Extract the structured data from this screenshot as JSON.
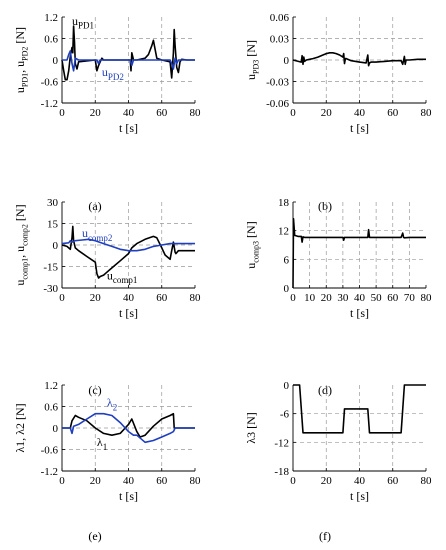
{
  "chart_data": [
    {
      "id": "a",
      "type": "line",
      "caption": "(a)",
      "xlabel": "t [s]",
      "ylabel": "u_PD1, u_PD2 [N]",
      "xlim": [
        0,
        80
      ],
      "ylim": [
        -1.2,
        1.2
      ],
      "xticks": [
        0,
        20,
        40,
        60,
        80
      ],
      "yticks": [
        1.2,
        0.6,
        0,
        -0.6,
        -1.2
      ],
      "xtick_labels": [
        "0",
        "20",
        "40",
        "60",
        "80"
      ],
      "ytick_labels": [
        "1.2",
        "0.6",
        "0",
        "-0.6",
        "-1.2"
      ],
      "grid": true,
      "series": [
        {
          "name": "u_PD1",
          "color": "#000000",
          "x": [
            0,
            1,
            2,
            3,
            4,
            5,
            6,
            6.5,
            7,
            7.5,
            8,
            9,
            10,
            20,
            21,
            22,
            23,
            24,
            25,
            30,
            41,
            41.5,
            42,
            42.5,
            43,
            45,
            50,
            52,
            54,
            55,
            56,
            57,
            60,
            65,
            66,
            67,
            67.5,
            68,
            69,
            70,
            71,
            72,
            75,
            80
          ],
          "y": [
            0,
            -0.3,
            -0.55,
            -0.55,
            -0.3,
            0.1,
            0.35,
            0.2,
            0.95,
            0.5,
            -0.1,
            -0.25,
            -0.05,
            0,
            -0.3,
            -0.15,
            -0.05,
            0.05,
            0,
            0,
            0,
            -0.3,
            0.2,
            0.1,
            0,
            0,
            0.05,
            0.15,
            0.4,
            0.55,
            0.3,
            0.05,
            0,
            -0.05,
            -0.5,
            0.2,
            0.85,
            0.4,
            -0.2,
            -0.35,
            -0.05,
            0.02,
            0,
            0
          ]
        },
        {
          "name": "u_PD2",
          "color": "#1f3fbf",
          "x": [
            0,
            3,
            4,
            5,
            6,
            7,
            8,
            10,
            21,
            22,
            23,
            30,
            41,
            42,
            43,
            60,
            65,
            66,
            67,
            68,
            69,
            70,
            80
          ],
          "y": [
            0,
            0,
            0.15,
            0.25,
            -0.1,
            -0.3,
            0.05,
            0,
            0,
            -0.1,
            0,
            0,
            0,
            -0.15,
            0,
            0,
            0,
            -0.1,
            -0.25,
            0.05,
            -0.1,
            0,
            0
          ]
        }
      ],
      "annotations": [
        {
          "label_parts": [
            "u",
            "PD1"
          ],
          "color": "#000000",
          "x": 6,
          "y": 0.98
        },
        {
          "label_parts": [
            "u",
            "PD2"
          ],
          "color": "#1f3fbf",
          "x": 24,
          "y": -0.45
        }
      ]
    },
    {
      "id": "b",
      "type": "line",
      "caption": "(b)",
      "xlabel": "t [s]",
      "ylabel": "u_PD3 [N]",
      "xlim": [
        0,
        80
      ],
      "ylim": [
        -0.06,
        0.06
      ],
      "xticks": [
        0,
        20,
        40,
        60,
        80
      ],
      "yticks": [
        0.06,
        0.03,
        0,
        -0.03,
        -0.06
      ],
      "xtick_labels": [
        "0",
        "20",
        "40",
        "60",
        "80"
      ],
      "ytick_labels": [
        "0.06",
        "0.03",
        "0",
        "-0.03",
        "-0.06"
      ],
      "grid": true,
      "series": [
        {
          "name": "u_PD3",
          "color": "#000000",
          "x": [
            0,
            5,
            5.5,
            6,
            6.5,
            7,
            8,
            10,
            12,
            15,
            18,
            20,
            22,
            24,
            26,
            28,
            30,
            30.5,
            31,
            31.5,
            32,
            35,
            40,
            44,
            45,
            45.5,
            46,
            47,
            50,
            55,
            60,
            65,
            66,
            67,
            67.5,
            68,
            70,
            75,
            80
          ],
          "y": [
            0,
            -0.003,
            0.006,
            -0.006,
            0.004,
            -0.002,
            0,
            0.001,
            0.002,
            0.004,
            0.007,
            0.009,
            0.01,
            0.01,
            0.009,
            0.007,
            0.004,
            0.009,
            -0.005,
            0.002,
            0.002,
            -0.001,
            -0.003,
            -0.004,
            0.007,
            -0.008,
            -0.004,
            -0.003,
            -0.003,
            -0.002,
            -0.001,
            -0.001,
            -0.006,
            0.005,
            -0.006,
            0,
            0,
            0.001,
            0.001
          ]
        }
      ]
    },
    {
      "id": "c",
      "type": "line",
      "caption": "(c)",
      "xlabel": "t [s]",
      "ylabel": "u_comp1, u_comp2 [N]",
      "xlim": [
        0,
        80
      ],
      "ylim": [
        -30,
        30
      ],
      "xticks": [
        0,
        20,
        40,
        60,
        80
      ],
      "yticks": [
        30,
        15,
        0,
        -15,
        -30
      ],
      "xtick_labels": [
        "0",
        "20",
        "40",
        "60",
        "80"
      ],
      "ytick_labels": [
        "30",
        "15",
        "0",
        "-15",
        "-30"
      ],
      "grid": true,
      "series": [
        {
          "name": "u_comp1",
          "color": "#000000",
          "x": [
            0,
            3,
            5,
            6,
            6.5,
            7,
            8,
            10,
            15,
            20,
            21,
            22,
            23,
            25,
            27,
            30,
            35,
            40,
            42,
            45,
            50,
            55,
            57,
            60,
            62,
            65,
            66,
            67,
            68,
            68.5,
            70,
            75,
            80
          ],
          "y": [
            0,
            -1,
            -3,
            5,
            13,
            3,
            -2,
            -4,
            -8,
            -12,
            -20,
            -23,
            -22,
            -21,
            -19,
            -16,
            -11,
            -6,
            -2,
            1,
            4,
            6,
            5,
            -2,
            -7,
            -10,
            -4,
            2,
            -5,
            -6,
            -4,
            -4,
            -4
          ]
        },
        {
          "name": "u_comp2",
          "color": "#1f3fbf",
          "x": [
            0,
            4,
            5,
            6,
            8,
            12,
            16,
            20,
            25,
            30,
            35,
            40,
            45,
            50,
            55,
            60,
            65,
            67,
            68,
            70,
            75,
            80
          ],
          "y": [
            1,
            1.5,
            3,
            2,
            3,
            3.5,
            4,
            3,
            1,
            -1,
            -3,
            -4,
            -4,
            -3,
            -1,
            0,
            1,
            1,
            1,
            1,
            1,
            1
          ]
        }
      ],
      "annotations": [
        {
          "label_parts": [
            "u",
            "comp2"
          ],
          "color": "#1f3fbf",
          "x": 12,
          "y": 5.5
        },
        {
          "label_parts": [
            "u",
            "comp1"
          ],
          "color": "#000000",
          "x": 27,
          "y": -24
        }
      ]
    },
    {
      "id": "d",
      "type": "line",
      "caption": "(d)",
      "xlabel": "t [s]",
      "ylabel": "u_comp3 [N]",
      "xlim": [
        0,
        80
      ],
      "ylim": [
        0,
        18
      ],
      "xticks": [
        0,
        10,
        20,
        30,
        40,
        50,
        60,
        70,
        80
      ],
      "yticks": [
        18,
        12,
        6,
        0
      ],
      "xtick_labels": [
        "0",
        "10",
        "20",
        "30",
        "40",
        "50",
        "60",
        "70",
        "80"
      ],
      "ytick_labels": [
        "18",
        "12",
        "6",
        "0"
      ],
      "grid": true,
      "series": [
        {
          "name": "u_comp3",
          "color": "#000000",
          "x": [
            0,
            0.3,
            1,
            3,
            5,
            5.5,
            6,
            7,
            10,
            20,
            30,
            30.5,
            31,
            40,
            45,
            45.5,
            46,
            55,
            65,
            66,
            66.5,
            67,
            70,
            80
          ],
          "y": [
            0,
            14.5,
            11,
            10.8,
            10.8,
            9.6,
            10.7,
            10.6,
            10.6,
            10.6,
            10.6,
            10,
            10.6,
            10.6,
            10.6,
            12.2,
            10.6,
            10.6,
            10.6,
            11.5,
            10.6,
            10.5,
            10.6,
            10.6
          ]
        }
      ]
    },
    {
      "id": "e",
      "type": "line",
      "caption": "(e)",
      "xlabel": "t [s]",
      "ylabel": "λ1, λ2 [N]",
      "xlim": [
        0,
        80
      ],
      "ylim": [
        -1.2,
        1.2
      ],
      "xticks": [
        0,
        20,
        40,
        60,
        80
      ],
      "yticks": [
        1.2,
        0.6,
        0,
        -0.6,
        -1.2
      ],
      "xtick_labels": [
        "0",
        "20",
        "40",
        "60",
        "80"
      ],
      "ytick_labels": [
        "1.2",
        "0.6",
        "0",
        "-0.6",
        "-1.2"
      ],
      "grid": true,
      "series": [
        {
          "name": "λ1",
          "color": "#000000",
          "x": [
            0,
            5,
            6,
            8,
            10,
            15,
            20,
            25,
            30,
            35,
            40,
            42,
            45,
            47,
            50,
            55,
            60,
            65,
            67,
            67.5,
            70,
            80
          ],
          "y": [
            0,
            0,
            0.2,
            0.35,
            0.3,
            0.2,
            0,
            -0.15,
            -0.2,
            -0.15,
            0.1,
            0.25,
            -0.1,
            -0.25,
            -0.2,
            0.05,
            0.25,
            0.35,
            0.4,
            0,
            0,
            0
          ]
        },
        {
          "name": "λ2",
          "color": "#1f3fbf",
          "x": [
            0,
            5,
            6,
            7,
            10,
            15,
            20,
            25,
            30,
            35,
            40,
            43,
            45,
            50,
            55,
            60,
            65,
            67,
            68,
            70,
            80
          ],
          "y": [
            0,
            0,
            -0.15,
            0.05,
            0.1,
            0.25,
            0.4,
            0.4,
            0.35,
            0.15,
            -0.1,
            -0.2,
            -0.2,
            -0.4,
            -0.35,
            -0.25,
            -0.15,
            -0.1,
            0,
            0,
            0
          ]
        }
      ],
      "annotations": [
        {
          "label_parts": [
            "λ",
            "2"
          ],
          "color": "#1f3fbf",
          "x": 27,
          "y": 0.6
        },
        {
          "label_parts": [
            "λ",
            "1"
          ],
          "color": "#000000",
          "x": 21,
          "y": -0.5
        }
      ]
    },
    {
      "id": "f",
      "type": "line",
      "caption": "(f)",
      "xlabel": "t [s]",
      "ylabel": "λ3 [N]",
      "xlim": [
        0,
        80
      ],
      "ylim": [
        -18,
        0
      ],
      "xticks": [
        0,
        20,
        40,
        60,
        80
      ],
      "yticks": [
        0,
        -6,
        -12,
        -18
      ],
      "xtick_labels": [
        "0",
        "20",
        "40",
        "60",
        "80"
      ],
      "ytick_labels": [
        "0",
        "-6",
        "-12",
        "-18"
      ],
      "grid": true,
      "series": [
        {
          "name": "λ3",
          "color": "#000000",
          "x": [
            0,
            4,
            6,
            30,
            31,
            45,
            46,
            65,
            67,
            80
          ],
          "y": [
            0,
            0,
            -10,
            -10,
            -5,
            -5,
            -10,
            -10,
            0,
            0
          ]
        }
      ]
    }
  ]
}
